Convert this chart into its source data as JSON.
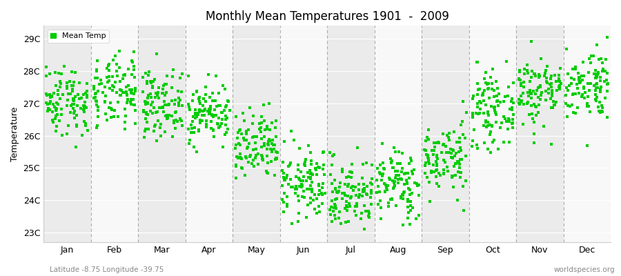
{
  "title": "Monthly Mean Temperatures 1901  -  2009",
  "ylabel": "Temperature",
  "months": [
    "Jan",
    "Feb",
    "Mar",
    "Apr",
    "May",
    "Jun",
    "Jul",
    "Aug",
    "Sep",
    "Oct",
    "Nov",
    "Dec"
  ],
  "ytick_labels": [
    "23C",
    "24C",
    "25C",
    "26C",
    "27C",
    "28C",
    "29C"
  ],
  "ytick_values": [
    23,
    24,
    25,
    26,
    27,
    28,
    29
  ],
  "ylim": [
    22.7,
    29.4
  ],
  "marker_color": "#00CC00",
  "marker": "s",
  "marker_size": 2.5,
  "legend_label": "Mean Temp",
  "footnote_left": "Latitude -8.75 Longitude -39.75",
  "footnote_right": "worldspecies.org",
  "bg_color": "#FFFFFF",
  "band_odd_color": "#EBEBEB",
  "band_even_color": "#F8F8F8",
  "dashed_line_color": "#999999",
  "month_means": [
    27.1,
    27.3,
    27.0,
    26.7,
    25.6,
    24.5,
    24.2,
    24.5,
    25.3,
    26.8,
    27.4,
    27.6
  ],
  "month_stds": [
    0.55,
    0.55,
    0.5,
    0.45,
    0.55,
    0.55,
    0.55,
    0.55,
    0.55,
    0.55,
    0.55,
    0.55
  ],
  "n_years": 109,
  "seed": 42
}
